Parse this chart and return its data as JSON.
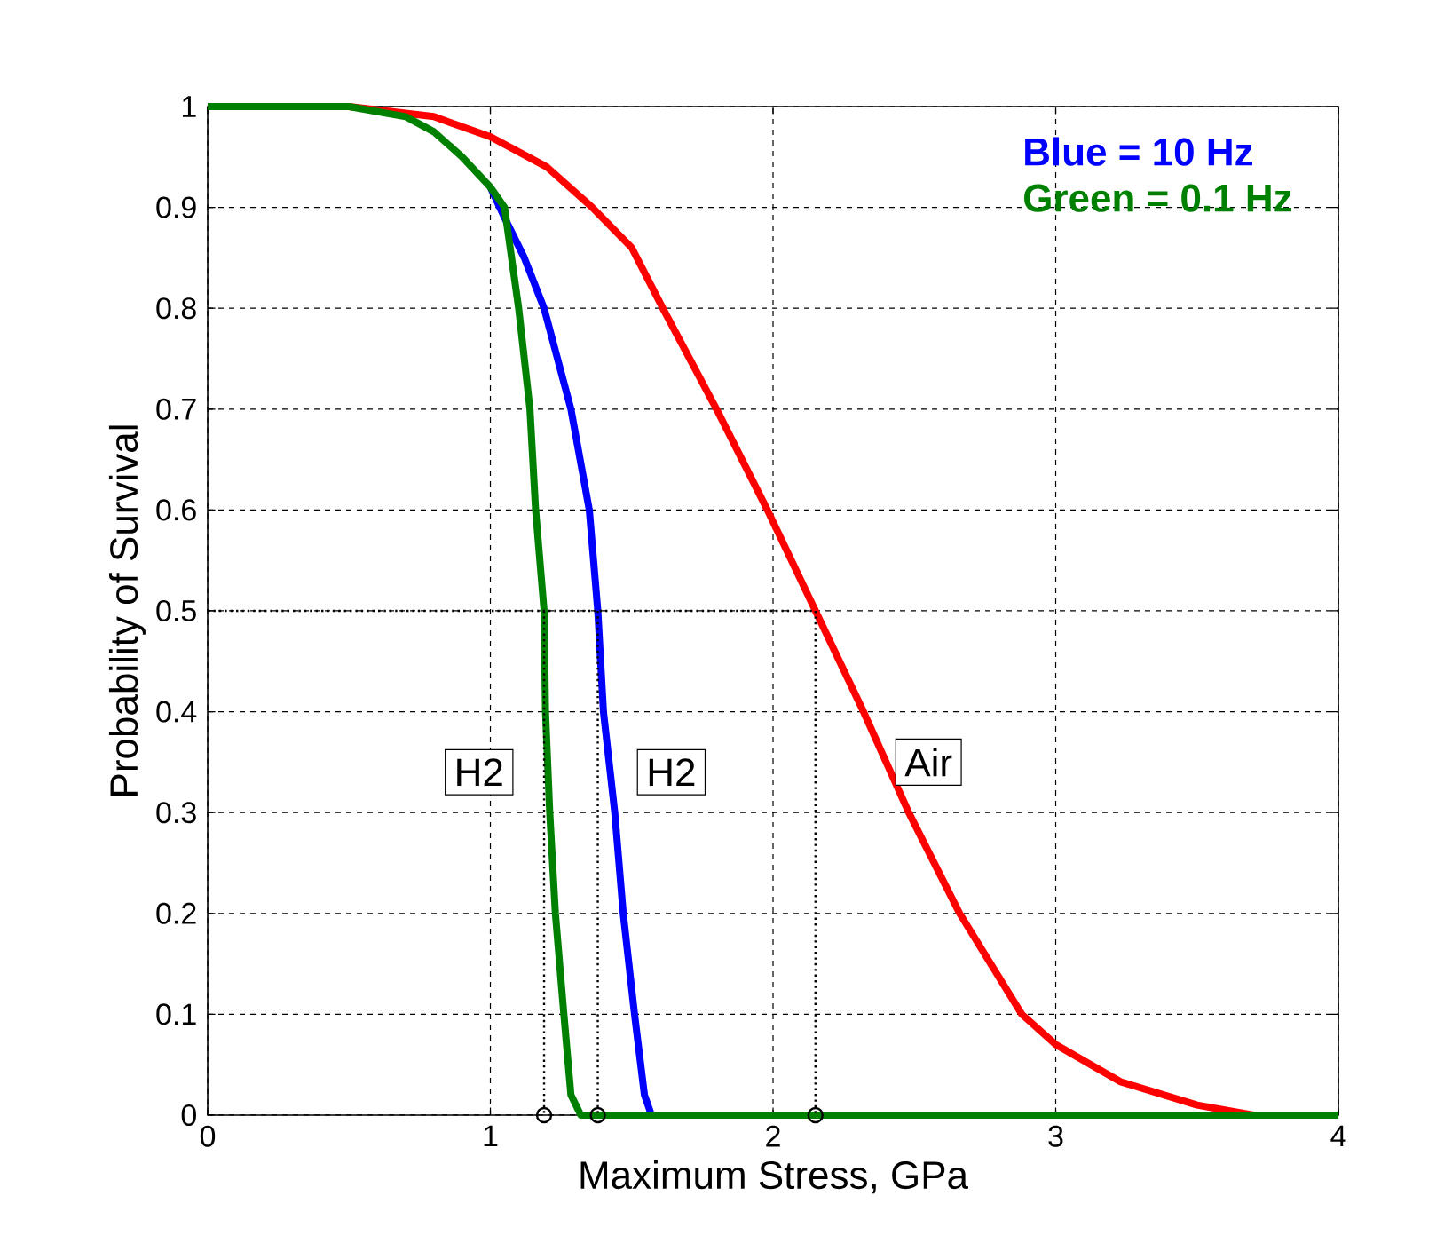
{
  "chart_data": {
    "type": "line",
    "xlabel": "Maximum Stress, GPa",
    "ylabel": "Probability of Survival",
    "xlim": [
      0,
      4
    ],
    "ylim": [
      0,
      1
    ],
    "xticks": [
      0,
      1,
      2,
      3,
      4
    ],
    "yticks": [
      0,
      0.1,
      0.2,
      0.3,
      0.4,
      0.5,
      0.6,
      0.7,
      0.8,
      0.9,
      1
    ],
    "grid": true,
    "legend": "top right",
    "series": [
      {
        "color": "#ff0000",
        "x": [
          0,
          0.5,
          0.8,
          1.0,
          1.2,
          1.36,
          1.5,
          1.61,
          1.8,
          1.98,
          2.15,
          2.32,
          2.48,
          2.66,
          2.88,
          3.0,
          3.23,
          3.5,
          3.7,
          4.0
        ],
        "values": [
          1,
          1,
          0.99,
          0.97,
          0.94,
          0.9,
          0.86,
          0.8,
          0.7,
          0.6,
          0.5,
          0.4,
          0.3,
          0.2,
          0.1,
          0.07,
          0.033,
          0.01,
          0,
          0
        ]
      },
      {
        "name": "Blue = 10 Hz",
        "color": "#0000ff",
        "x": [
          1.0,
          1.05,
          1.12,
          1.19,
          1.285,
          1.35,
          1.38,
          1.4,
          1.44,
          1.47,
          1.51,
          1.545,
          1.57,
          1.69
        ],
        "values": [
          0.92,
          0.89,
          0.85,
          0.8,
          0.7,
          0.6,
          0.5,
          0.4,
          0.3,
          0.2,
          0.1,
          0.02,
          0,
          0
        ]
      },
      {
        "name": "Green = 0.1 Hz",
        "color": "#008000",
        "x": [
          0,
          0.5,
          0.7,
          0.8,
          0.9,
          1.0,
          1.05,
          1.1,
          1.14,
          1.16,
          1.19,
          1.195,
          1.21,
          1.23,
          1.26,
          1.285,
          1.32,
          4.0
        ],
        "values": [
          1,
          1,
          0.99,
          0.975,
          0.95,
          0.92,
          0.9,
          0.8,
          0.7,
          0.6,
          0.5,
          0.4,
          0.3,
          0.2,
          0.1,
          0.02,
          0,
          0
        ]
      },
      {
        "color": "#000000",
        "line_style": "dotted",
        "x": [
          0,
          2.15,
          2.15
        ],
        "values": [
          0.5,
          0.5,
          0
        ]
      },
      {
        "color": "#000000",
        "line_style": "dotted",
        "x": [
          1.19,
          1.19
        ],
        "values": [
          0.5,
          0
        ]
      },
      {
        "color": "#000000",
        "line_style": "dotted",
        "x": [
          1.38,
          1.38
        ],
        "values": [
          0.5,
          0
        ]
      },
      {
        "type": "scatter",
        "marker": "circle",
        "color": "#000000",
        "x": [
          1.19,
          1.38,
          2.15
        ],
        "values": [
          0,
          0,
          0
        ]
      }
    ],
    "annotations": [
      {
        "text": "H2",
        "x": 0.96,
        "y": 0.34
      },
      {
        "text": "H2",
        "x": 1.64,
        "y": 0.34
      },
      {
        "text": "Air",
        "x": 2.55,
        "y": 0.35
      }
    ]
  }
}
